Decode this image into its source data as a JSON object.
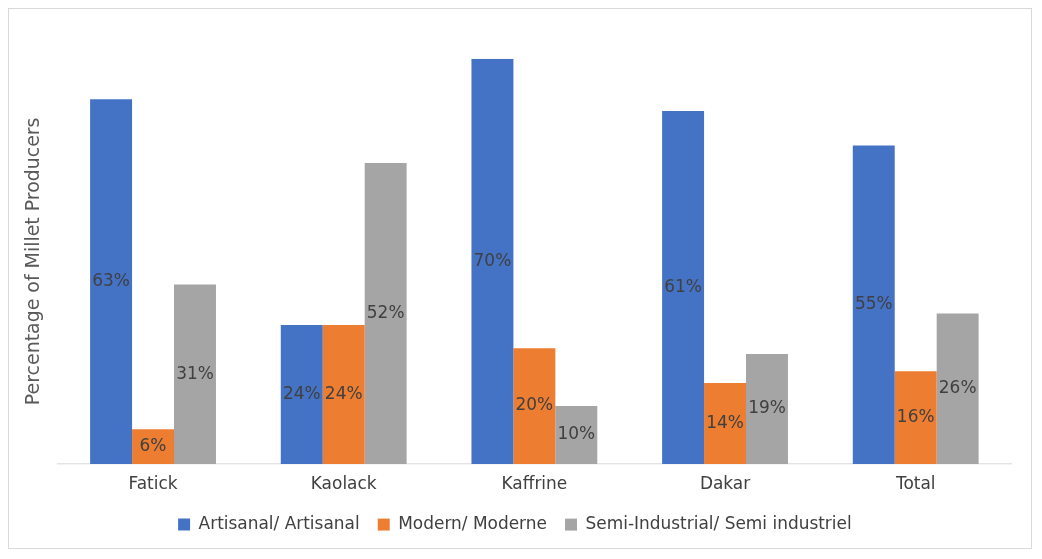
{
  "chart_data": {
    "type": "bar",
    "ylabel": "Percentage of Millet Producers",
    "categories": [
      "Fatick",
      "Kaolack",
      "Kaffrine",
      "Dakar",
      "Total"
    ],
    "series": [
      {
        "name": "Artisanal/ Artisanal",
        "color": "#4472c4",
        "values": [
          63,
          24,
          70,
          61,
          55
        ],
        "value_labels": [
          "63%",
          "24%",
          "70%",
          "61%",
          "55%"
        ]
      },
      {
        "name": "Modern/ Moderne",
        "color": "#ed7d31",
        "values": [
          6,
          24,
          20,
          14,
          16
        ],
        "value_labels": [
          "6%",
          "24%",
          "20%",
          "14%",
          "16%"
        ]
      },
      {
        "name": "Semi-Industrial/ Semi industriel",
        "color": "#a5a5a5",
        "values": [
          31,
          52,
          10,
          19,
          26
        ],
        "value_labels": [
          "31%",
          "52%",
          "10%",
          "19%",
          "26%"
        ]
      }
    ],
    "grid": false,
    "legend": "bottom"
  }
}
